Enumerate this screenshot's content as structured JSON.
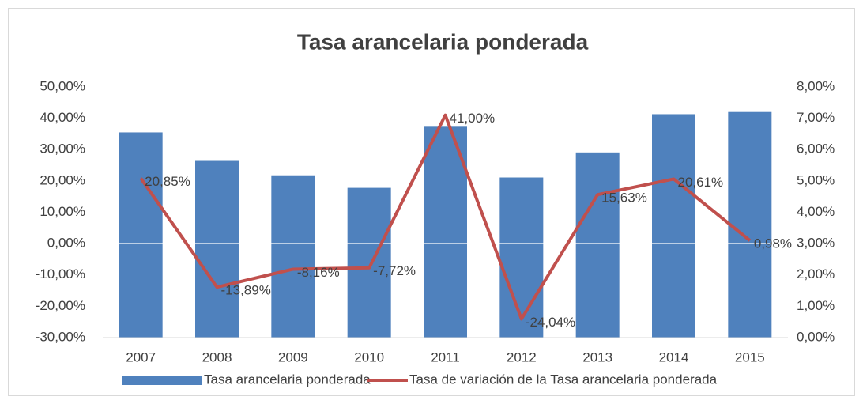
{
  "chart_data": {
    "type": "bar-line",
    "title": "Tasa arancelaria ponderada",
    "categories": [
      "2007",
      "2008",
      "2009",
      "2010",
      "2011",
      "2012",
      "2013",
      "2014",
      "2015"
    ],
    "series": [
      {
        "name": "Tasa arancelaria ponderada",
        "type": "bar",
        "color": "#4f81bd",
        "axis": "y2",
        "values": [
          6.55,
          5.64,
          5.18,
          4.78,
          6.73,
          5.11,
          5.91,
          7.13,
          7.2
        ]
      },
      {
        "name": "Tasa de variación de la Tasa arancelaria ponderada",
        "type": "line",
        "color": "#c0504d",
        "axis": "y",
        "values": [
          20.85,
          -13.89,
          -8.16,
          -7.72,
          41.0,
          -24.04,
          15.63,
          20.61,
          0.98
        ],
        "value_labels": [
          "20,85%",
          "-13,89%",
          "-8,16%",
          "-7,72%",
          "41,00%",
          "-24,04%",
          "15,63%",
          "20,61%",
          "0,98%"
        ]
      }
    ],
    "ylim": [
      -30,
      50
    ],
    "yticks": [
      {
        "value": -30,
        "label": "-30,00%"
      },
      {
        "value": -20,
        "label": "-20,00%"
      },
      {
        "value": -10,
        "label": "-10,00%"
      },
      {
        "value": 0,
        "label": "0,00%"
      },
      {
        "value": 10,
        "label": "10,00%"
      },
      {
        "value": 20,
        "label": "20,00%"
      },
      {
        "value": 30,
        "label": "30,00%"
      },
      {
        "value": 40,
        "label": "40,00%"
      },
      {
        "value": 50,
        "label": "50,00%"
      }
    ],
    "y2lim": [
      0,
      8
    ],
    "y2ticks": [
      {
        "value": 0,
        "label": "0,00%"
      },
      {
        "value": 1,
        "label": "1,00%"
      },
      {
        "value": 2,
        "label": "2,00%"
      },
      {
        "value": 3,
        "label": "3,00%"
      },
      {
        "value": 4,
        "label": "4,00%"
      },
      {
        "value": 5,
        "label": "5,00%"
      },
      {
        "value": 6,
        "label": "6,00%"
      },
      {
        "value": 7,
        "label": "7,00%"
      },
      {
        "value": 8,
        "label": "8,00%"
      }
    ],
    "legend": "bottom"
  }
}
